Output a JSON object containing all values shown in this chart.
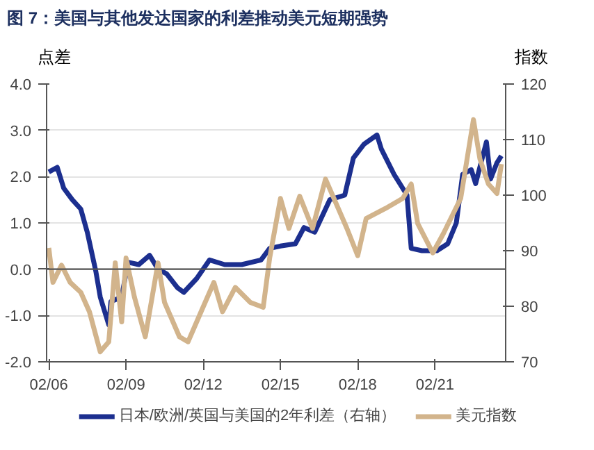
{
  "chart_data": {
    "type": "line",
    "title": "图 7：美国与其他发达国家的利差推动美元短期强势",
    "ylabel": "点差",
    "y2label": "指数",
    "xlim": [
      "2006-01",
      "2023-11"
    ],
    "xticks": [
      {
        "value": "2006-02",
        "label": "02/06"
      },
      {
        "value": "2009-02",
        "label": "02/09"
      },
      {
        "value": "2012-02",
        "label": "02/12"
      },
      {
        "value": "2015-02",
        "label": "02/15"
      },
      {
        "value": "2018-02",
        "label": "02/18"
      },
      {
        "value": "2021-02",
        "label": "02/21"
      }
    ],
    "ylim": [
      -2.0,
      4.0
    ],
    "yticks": [
      {
        "value": -2,
        "label": "-2.0"
      },
      {
        "value": -1,
        "label": "-1.0"
      },
      {
        "value": 0,
        "label": "0.0"
      },
      {
        "value": 1,
        "label": "1.0"
      },
      {
        "value": 2,
        "label": "2.0"
      },
      {
        "value": 3,
        "label": "3.0"
      },
      {
        "value": 4,
        "label": "4.0"
      }
    ],
    "y2lim": [
      70,
      120
    ],
    "y2ticks": [
      70,
      80,
      90,
      100,
      110,
      120
    ],
    "grid": "y",
    "legend": "bottom",
    "ref_lines": [
      {
        "axis": "y",
        "value": 0,
        "color": "#555555"
      }
    ],
    "series": [
      {
        "name": "日本/欧洲/英国与美国的2年利差（右轴）",
        "color": "#1c2f8f",
        "x": [
          "2006-02",
          "2006-06",
          "2006-09",
          "2007-01",
          "2007-05",
          "2007-08",
          "2007-12",
          "2008-02",
          "2008-06",
          "2008-07",
          "2008-12",
          "2009-03",
          "2009-08",
          "2010-01",
          "2010-05",
          "2010-09",
          "2011-02",
          "2011-05",
          "2011-11",
          "2012-05",
          "2012-12",
          "2013-08",
          "2014-05",
          "2014-09",
          "2015-02",
          "2015-09",
          "2016-01",
          "2016-06",
          "2017-01",
          "2017-08",
          "2017-12",
          "2018-05",
          "2018-11",
          "2019-01",
          "2019-07",
          "2020-01",
          "2020-03",
          "2020-08",
          "2021-03",
          "2021-08",
          "2021-12",
          "2022-03",
          "2022-07",
          "2022-09",
          "2023-02",
          "2023-04",
          "2023-07",
          "2023-09"
        ],
        "values": [
          2.1,
          2.2,
          1.75,
          1.5,
          1.3,
          0.8,
          -0.05,
          -0.6,
          -1.2,
          -0.7,
          -0.6,
          0.15,
          0.1,
          0.3,
          0.0,
          -0.1,
          -0.4,
          -0.5,
          -0.2,
          0.2,
          0.1,
          0.1,
          0.2,
          0.45,
          0.5,
          0.55,
          0.9,
          0.8,
          1.5,
          1.6,
          2.4,
          2.7,
          2.9,
          2.6,
          2.05,
          1.6,
          0.45,
          0.4,
          0.4,
          0.55,
          1.0,
          2.05,
          2.15,
          1.85,
          2.75,
          1.95,
          2.3,
          2.45
        ]
      },
      {
        "name": "美元指数",
        "color": "#d2b48c",
        "axis": "y2",
        "x": [
          "2006-02",
          "2006-04",
          "2006-08",
          "2006-12",
          "2007-05",
          "2007-09",
          "2008-02",
          "2008-06",
          "2008-09",
          "2008-12",
          "2009-02",
          "2009-06",
          "2009-11",
          "2010-05",
          "2010-08",
          "2011-03",
          "2011-07",
          "2012-01",
          "2012-07",
          "2012-11",
          "2013-05",
          "2013-12",
          "2014-06",
          "2014-09",
          "2015-02",
          "2015-06",
          "2015-11",
          "2016-05",
          "2016-11",
          "2017-03",
          "2017-09",
          "2018-02",
          "2018-06",
          "2019-03",
          "2019-11",
          "2020-03",
          "2020-06",
          "2021-01",
          "2021-06",
          "2022-02",
          "2022-08",
          "2022-11",
          "2023-03",
          "2023-07",
          "2023-09"
        ],
        "values": [
          90.5,
          84.3,
          87.4,
          84.3,
          82.5,
          79.0,
          71.8,
          73.6,
          87.8,
          77.2,
          88.7,
          81.6,
          74.5,
          87.8,
          80.7,
          74.5,
          73.6,
          79.0,
          84.3,
          79.0,
          83.4,
          80.7,
          79.8,
          88.7,
          99.4,
          94.0,
          99.8,
          94.0,
          102.9,
          99.4,
          94.0,
          89.1,
          95.8,
          97.6,
          99.4,
          102.0,
          94.9,
          89.6,
          93.1,
          99.4,
          113.6,
          106.5,
          102.0,
          100.3,
          105.6
        ]
      }
    ]
  }
}
